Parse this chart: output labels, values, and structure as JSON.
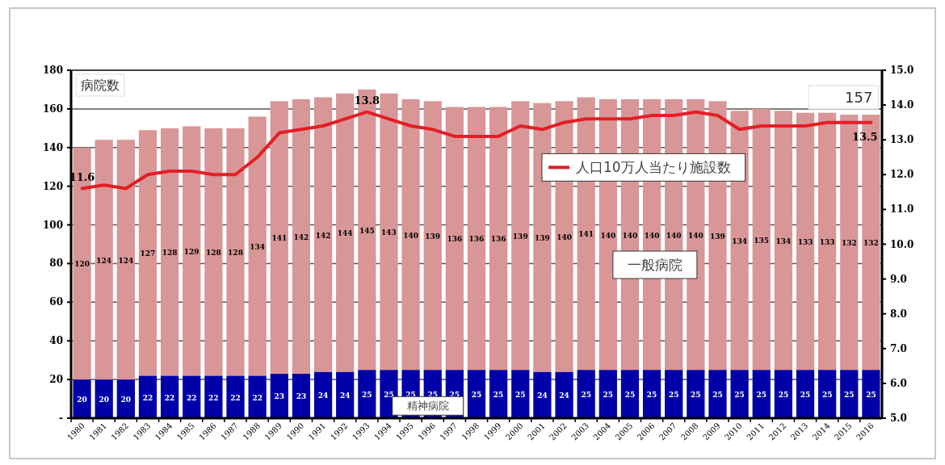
{
  "chart_data": {
    "type": "bar",
    "stacked": true,
    "data_labels": true,
    "grid": "y",
    "ylabel": "病院数",
    "categories": [
      "1980",
      "1981",
      "1982",
      "1983",
      "1984",
      "1985",
      "1986",
      "1987",
      "1988",
      "1989",
      "1990",
      "1991",
      "1992",
      "1993",
      "1994",
      "1995",
      "1996",
      "1997",
      "1998",
      "1999",
      "2000",
      "2001",
      "2002",
      "2003",
      "2004",
      "2005",
      "2006",
      "2007",
      "2008",
      "2009",
      "2010",
      "2011",
      "2012",
      "2013",
      "2014",
      "2015",
      "2016"
    ],
    "series": [
      {
        "name": "精神病院",
        "color": "#0000a8",
        "values": [
          20,
          20,
          20,
          22,
          22,
          22,
          22,
          22,
          22,
          23,
          23,
          24,
          24,
          25,
          25,
          25,
          25,
          25,
          25,
          25,
          25,
          24,
          24,
          25,
          25,
          25,
          25,
          25,
          25,
          25,
          25,
          25,
          25,
          25,
          25,
          25,
          25
        ]
      },
      {
        "name": "一般病院",
        "color": "#d99697",
        "values": [
          120,
          124,
          124,
          127,
          128,
          129,
          128,
          128,
          134,
          141,
          142,
          142,
          144,
          145,
          143,
          140,
          139,
          136,
          136,
          136,
          139,
          139,
          140,
          141,
          140,
          140,
          140,
          140,
          140,
          139,
          134,
          135,
          134,
          133,
          133,
          132,
          132
        ]
      },
      {
        "name": "人口10万人当たり施設数",
        "type": "line",
        "axis": "y2",
        "color": "#e41e26",
        "values": [
          11.6,
          11.7,
          11.6,
          12.0,
          12.1,
          12.1,
          12.0,
          12.0,
          12.5,
          13.2,
          13.3,
          13.4,
          13.6,
          13.8,
          13.6,
          13.4,
          13.3,
          13.1,
          13.1,
          13.1,
          13.4,
          13.3,
          13.5,
          13.6,
          13.6,
          13.6,
          13.7,
          13.7,
          13.8,
          13.7,
          13.3,
          13.4,
          13.4,
          13.4,
          13.5,
          13.5,
          13.5
        ],
        "value_labels": [
          "11.6",
          null,
          null,
          null,
          null,
          null,
          null,
          null,
          null,
          null,
          null,
          null,
          null,
          "13.8",
          null,
          null,
          null,
          null,
          null,
          null,
          null,
          null,
          null,
          null,
          null,
          null,
          null,
          null,
          null,
          null,
          null,
          null,
          null,
          null,
          null,
          null,
          "13.5"
        ]
      }
    ],
    "ylim": [
      0,
      180
    ],
    "yticks": [
      {
        "value": 0,
        "label": "-"
      },
      20,
      40,
      60,
      80,
      100,
      120,
      140,
      160,
      180
    ],
    "y2lim": [
      5,
      15
    ],
    "y2ticks": [
      {
        "value": 5,
        "label": "5.0"
      },
      {
        "value": 6,
        "label": "6.0"
      },
      {
        "value": 7,
        "label": "7.0"
      },
      {
        "value": 8,
        "label": "8.0"
      },
      {
        "value": 9,
        "label": "9.0"
      },
      {
        "value": 10,
        "label": "10.0"
      },
      {
        "value": 11,
        "label": "11.0"
      },
      {
        "value": 12,
        "label": "12.0"
      },
      {
        "value": 13,
        "label": "13.0"
      },
      {
        "value": 14,
        "label": "14.0"
      },
      {
        "value": 15,
        "label": "15.0"
      }
    ],
    "annotations": [
      {
        "text": "157",
        "x": "2016",
        "y": 157
      }
    ]
  }
}
